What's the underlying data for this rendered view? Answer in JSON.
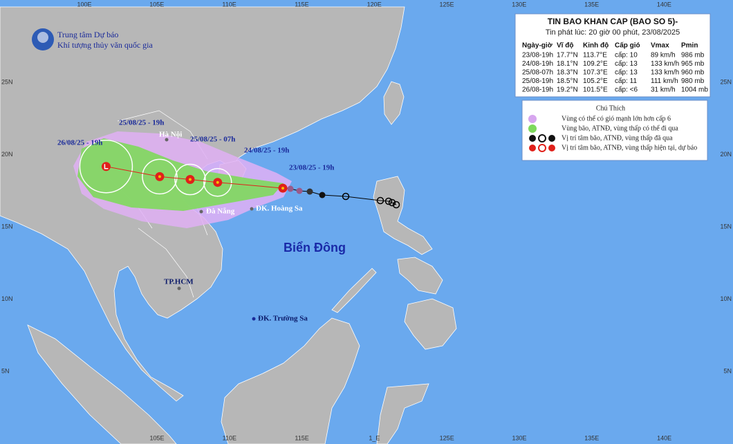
{
  "header": {
    "org_line1": "Trung tâm Dự báo",
    "org_line2": "Khí tượng thủy văn quốc gia"
  },
  "axes": {
    "lon_top": [
      "100E",
      "105E",
      "110E",
      "115E",
      "120E",
      "125E",
      "130E",
      "135E",
      "140E"
    ],
    "lon_bottom": [
      "105E",
      "110E",
      "115E",
      "1_E",
      "125E",
      "130E",
      "135E",
      "140E"
    ],
    "lat": [
      "25N",
      "20N",
      "15N",
      "10N",
      "5N"
    ]
  },
  "bulletin": {
    "title": "TIN BAO KHAN CAP (BAO SO 5)-",
    "issued": "Tin phát lúc: 20 giờ 00 phút, 23/08/2025",
    "columns": [
      "Ngày-giờ",
      "Vĩ độ",
      "Kinh độ",
      "Cấp gió",
      "Vmax",
      "Pmin"
    ],
    "rows": [
      [
        "23/08-19h",
        "17.7°N",
        "113.7°E",
        "cấp: 10",
        "89 km/h",
        "986 mb"
      ],
      [
        "24/08-19h",
        "18.1°N",
        "109.2°E",
        "cấp: 13",
        "133 km/h",
        "965 mb"
      ],
      [
        "25/08-07h",
        "18.3°N",
        "107.3°E",
        "cấp: 13",
        "133 km/h",
        "960 mb"
      ],
      [
        "25/08-19h",
        "18.5°N",
        "105.2°E",
        "cấp: 11",
        "111 km/h",
        "980 mb"
      ],
      [
        "26/08-19h",
        "19.2°N",
        "101.5°E",
        "cấp: <6",
        "31 km/h",
        "1004 mb"
      ]
    ]
  },
  "legend": {
    "title": "Chú Thích",
    "items": [
      "Vùng có thể có gió mạnh lớn hơn cấp 6",
      "Vùng bão, ATNĐ, vùng thấp có thể đi qua",
      "Vị trí tâm bão, ATNĐ, vùng thấp đã qua",
      "Vị trí tâm bão, ATNĐ, vùng thấp hiện tại, dự báo"
    ]
  },
  "places": [
    "Hà Nội",
    "Đà Nẵng",
    "ĐK. Hoàng Sa",
    "TP.HCM",
    "ĐK. Trường Sa",
    "Biển Đông"
  ],
  "track_labels": [
    "23/08/25 - 19h",
    "24/08/25 - 19h",
    "25/08/25 - 07h",
    "25/08/25 - 19h",
    "26/08/25 - 19h"
  ]
}
